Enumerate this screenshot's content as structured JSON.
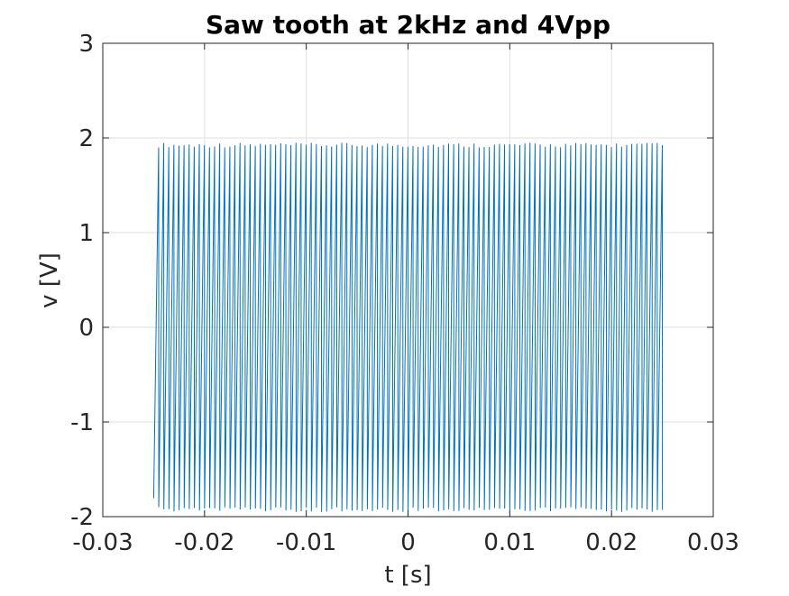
{
  "chart_data": {
    "type": "line",
    "title": "Saw tooth at 2kHz and 4Vpp",
    "xlabel": "t [s]",
    "ylabel": "v [V]",
    "xlim": [
      -0.03,
      0.03
    ],
    "ylim": [
      -2,
      3
    ],
    "xticks": [
      -0.03,
      -0.02,
      -0.01,
      0,
      0.01,
      0.02,
      0.03
    ],
    "xtick_labels": [
      "-0.03",
      "-0.02",
      "-0.01",
      "0",
      "0.01",
      "0.02",
      "0.03"
    ],
    "yticks": [
      -2,
      -1,
      0,
      1,
      2,
      3
    ],
    "ytick_labels": [
      "-2",
      "-1",
      "0",
      "1",
      "2",
      "3"
    ],
    "grid": true,
    "series": [
      {
        "color": "#0072BD",
        "frequency_hz": 2000,
        "amplitude_v": 1.9,
        "t_start": -0.025,
        "t_end": 0.025
      }
    ]
  }
}
